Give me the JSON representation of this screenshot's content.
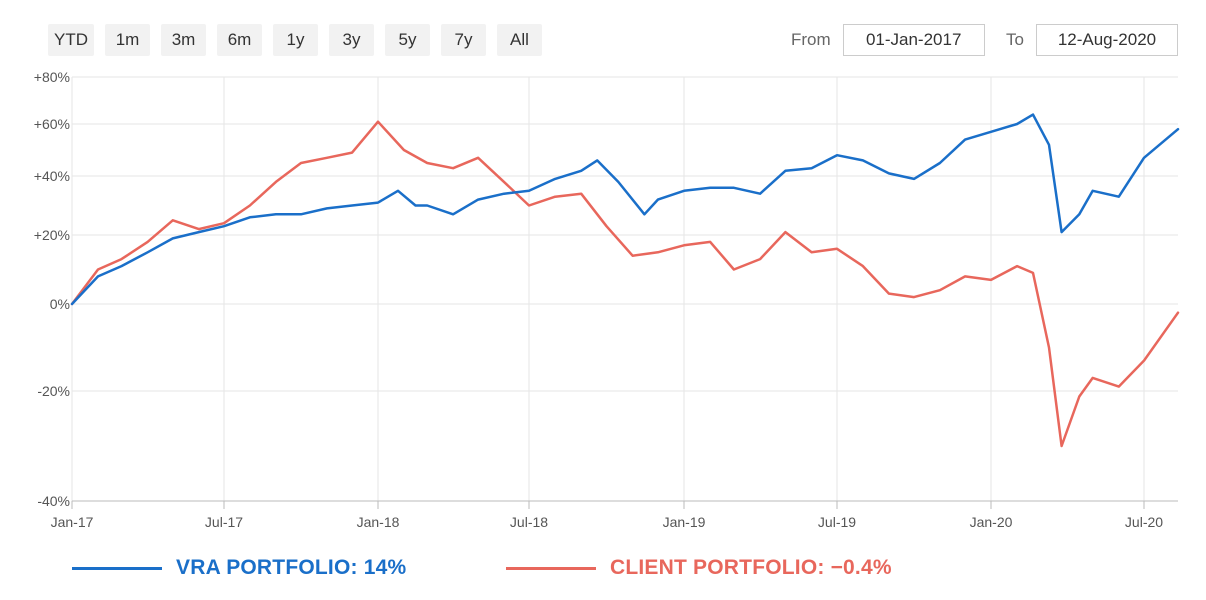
{
  "toolbar": {
    "range_buttons": [
      "YTD",
      "1m",
      "3m",
      "6m",
      "1y",
      "3y",
      "5y",
      "7y",
      "All"
    ],
    "from_label": "From",
    "from_value": "01-Jan-2017",
    "to_label": "To",
    "to_value": "12-Aug-2020"
  },
  "legend": {
    "vra_label": "VRA PORTFOLIO: 14%",
    "client_label": "CLIENT PORTFOLIO: −0.4%"
  },
  "colors": {
    "vra": "#1a6fc9",
    "client": "#e8675c",
    "grid": "#e6e6e6",
    "button_bg": "#f2f2f2"
  },
  "chart_data": {
    "type": "line",
    "title": "",
    "xlabel": "",
    "ylabel": "",
    "grid": true,
    "ylim": [
      -40,
      80
    ],
    "xlim": [
      "2017-01-01",
      "2020-08-12"
    ],
    "y_ticks": [
      {
        "value": 80,
        "label": "+80%"
      },
      {
        "value": 60,
        "label": "+60%"
      },
      {
        "value": 40,
        "label": "+40%"
      },
      {
        "value": 20,
        "label": "+20%"
      },
      {
        "value": 0,
        "label": "0%"
      },
      {
        "value": -20,
        "label": "-20%"
      },
      {
        "value": -40,
        "label": "-40%"
      }
    ],
    "x_ticks": [
      {
        "value": "2017-01-01",
        "label": "Jan-17"
      },
      {
        "value": "2017-07-01",
        "label": "Jul-17"
      },
      {
        "value": "2018-01-01",
        "label": "Jan-18"
      },
      {
        "value": "2018-07-01",
        "label": "Jul-18"
      },
      {
        "value": "2019-01-01",
        "label": "Jan-19"
      },
      {
        "value": "2019-07-01",
        "label": "Jul-19"
      },
      {
        "value": "2020-01-01",
        "label": "Jan-20"
      },
      {
        "value": "2020-07-01",
        "label": "Jul-20"
      }
    ],
    "series": [
      {
        "name": "VRA PORTFOLIO: 14%",
        "color": "#1a6fc9",
        "points": [
          [
            "2017-01-01",
            0
          ],
          [
            "2017-02-01",
            8
          ],
          [
            "2017-03-01",
            11
          ],
          [
            "2017-04-01",
            15
          ],
          [
            "2017-05-01",
            19
          ],
          [
            "2017-06-01",
            21
          ],
          [
            "2017-07-01",
            23
          ],
          [
            "2017-08-01",
            26
          ],
          [
            "2017-09-01",
            27
          ],
          [
            "2017-10-01",
            27
          ],
          [
            "2017-11-01",
            29
          ],
          [
            "2017-12-01",
            30
          ],
          [
            "2018-01-01",
            31
          ],
          [
            "2018-01-25",
            35
          ],
          [
            "2018-02-15",
            30
          ],
          [
            "2018-03-01",
            30
          ],
          [
            "2018-04-01",
            27
          ],
          [
            "2018-05-01",
            32
          ],
          [
            "2018-06-01",
            34
          ],
          [
            "2018-07-01",
            35
          ],
          [
            "2018-08-01",
            39
          ],
          [
            "2018-09-01",
            42
          ],
          [
            "2018-09-20",
            46
          ],
          [
            "2018-10-15",
            38
          ],
          [
            "2018-11-15",
            27
          ],
          [
            "2018-12-01",
            32
          ],
          [
            "2019-01-01",
            35
          ],
          [
            "2019-02-01",
            36
          ],
          [
            "2019-03-01",
            36
          ],
          [
            "2019-04-01",
            34
          ],
          [
            "2019-05-01",
            42
          ],
          [
            "2019-06-01",
            43
          ],
          [
            "2019-07-01",
            48
          ],
          [
            "2019-08-01",
            46
          ],
          [
            "2019-09-01",
            41
          ],
          [
            "2019-10-01",
            39
          ],
          [
            "2019-11-01",
            45
          ],
          [
            "2019-12-01",
            54
          ],
          [
            "2020-01-01",
            57
          ],
          [
            "2020-02-01",
            60
          ],
          [
            "2020-02-20",
            64
          ],
          [
            "2020-03-10",
            52
          ],
          [
            "2020-03-25",
            21
          ],
          [
            "2020-04-15",
            27
          ],
          [
            "2020-05-01",
            35
          ],
          [
            "2020-06-01",
            33
          ],
          [
            "2020-07-01",
            47
          ],
          [
            "2020-08-12",
            58
          ]
        ]
      },
      {
        "name": "CLIENT PORTFOLIO: −0.4%",
        "color": "#e8675c",
        "points": [
          [
            "2017-01-01",
            0
          ],
          [
            "2017-02-01",
            10
          ],
          [
            "2017-03-01",
            13
          ],
          [
            "2017-04-01",
            18
          ],
          [
            "2017-05-01",
            25
          ],
          [
            "2017-06-01",
            22
          ],
          [
            "2017-07-01",
            24
          ],
          [
            "2017-08-01",
            30
          ],
          [
            "2017-09-01",
            38
          ],
          [
            "2017-10-01",
            45
          ],
          [
            "2017-11-01",
            47
          ],
          [
            "2017-12-01",
            49
          ],
          [
            "2018-01-01",
            61
          ],
          [
            "2018-02-01",
            50
          ],
          [
            "2018-03-01",
            45
          ],
          [
            "2018-04-01",
            43
          ],
          [
            "2018-05-01",
            47
          ],
          [
            "2018-06-01",
            38
          ],
          [
            "2018-07-01",
            30
          ],
          [
            "2018-08-01",
            33
          ],
          [
            "2018-09-01",
            34
          ],
          [
            "2018-10-01",
            23
          ],
          [
            "2018-11-01",
            14
          ],
          [
            "2018-12-01",
            15
          ],
          [
            "2019-01-01",
            17
          ],
          [
            "2019-02-01",
            18
          ],
          [
            "2019-03-01",
            10
          ],
          [
            "2019-04-01",
            13
          ],
          [
            "2019-05-01",
            21
          ],
          [
            "2019-06-01",
            15
          ],
          [
            "2019-07-01",
            16
          ],
          [
            "2019-08-01",
            11
          ],
          [
            "2019-09-01",
            3
          ],
          [
            "2019-10-01",
            2
          ],
          [
            "2019-11-01",
            4
          ],
          [
            "2019-12-01",
            8
          ],
          [
            "2020-01-01",
            7
          ],
          [
            "2020-02-01",
            11
          ],
          [
            "2020-02-20",
            9
          ],
          [
            "2020-03-10",
            -10
          ],
          [
            "2020-03-25",
            -30
          ],
          [
            "2020-04-15",
            -21
          ],
          [
            "2020-05-01",
            -17
          ],
          [
            "2020-06-01",
            -19
          ],
          [
            "2020-07-01",
            -13
          ],
          [
            "2020-08-12",
            -2
          ]
        ]
      }
    ]
  }
}
